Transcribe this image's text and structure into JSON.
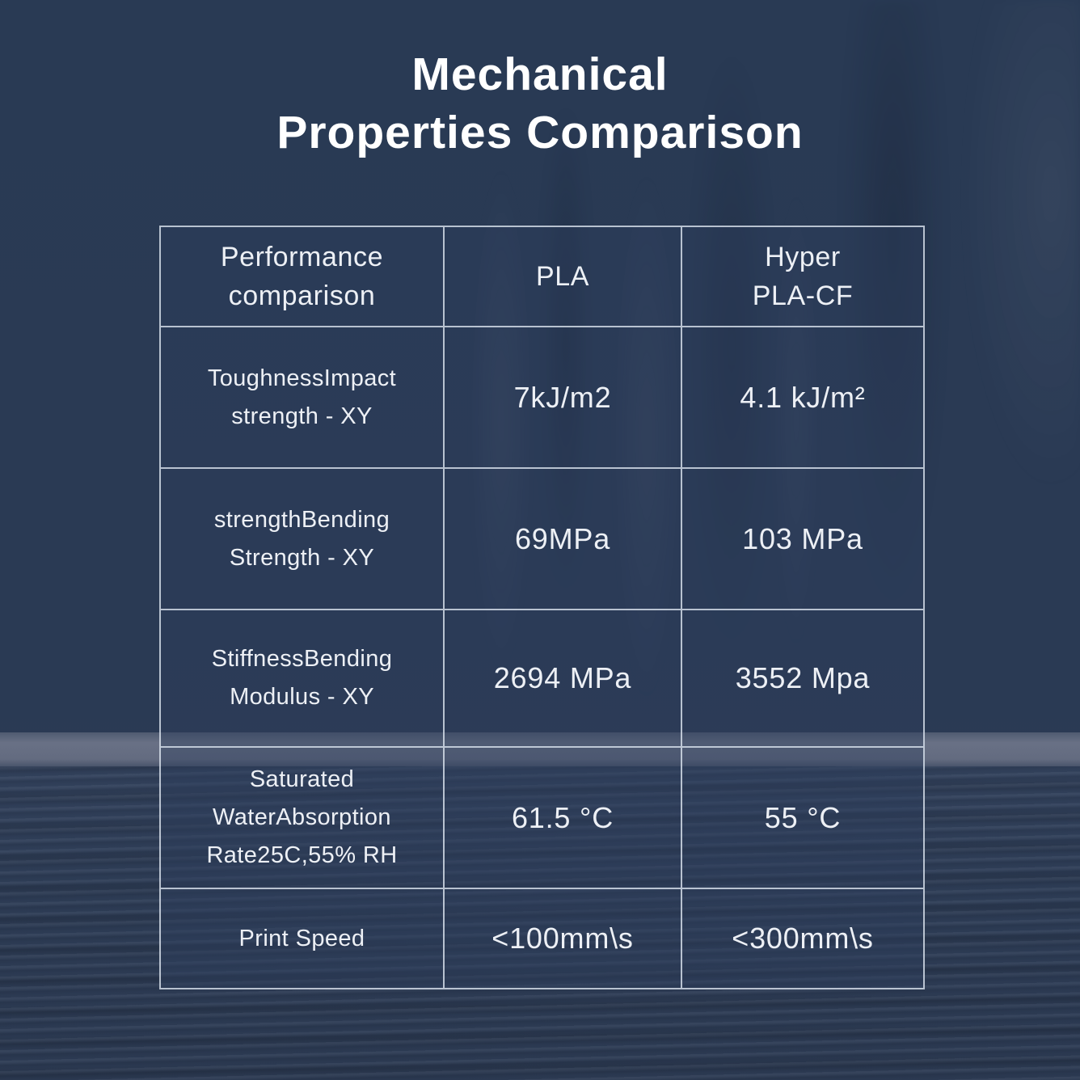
{
  "title": {
    "text": "Mechanical\nProperties Comparison"
  },
  "table": {
    "headers": [
      "Performance\ncomparison",
      "PLA",
      "Hyper\nPLA-CF"
    ],
    "rows": [
      {
        "label": "ToughnessImpact\nstrength - XY",
        "pla": "7kJ/m2",
        "hyper_pla_cf": "4.1 kJ/m²"
      },
      {
        "label": "strengthBending\nStrength - XY",
        "pla": "69MPa",
        "hyper_pla_cf": "103 MPa"
      },
      {
        "label": "StiffnessBending\nModulus - XY",
        "pla": "2694 MPa",
        "hyper_pla_cf": "3552 Mpa"
      },
      {
        "label": "Saturated\nWaterAbsorption\nRate25C,55% RH",
        "pla": "61.5 °C",
        "hyper_pla_cf": "55 °C"
      },
      {
        "label": "Print Speed",
        "pla": "<100mm\\s",
        "hyper_pla_cf": "<300mm\\s"
      }
    ]
  },
  "chart_data": {
    "type": "table",
    "title": "Mechanical Properties Comparison",
    "columns": [
      "Performance comparison",
      "PLA",
      "Hyper PLA-CF"
    ],
    "rows": [
      [
        "ToughnessImpact strength - XY",
        "7kJ/m2",
        "4.1 kJ/m²"
      ],
      [
        "strengthBending Strength - XY",
        "69MPa",
        "103 MPa"
      ],
      [
        "StiffnessBending Modulus - XY",
        "2694 MPa",
        "3552 Mpa"
      ],
      [
        "Saturated WaterAbsorption Rate25C,55% RH",
        "61.5 °C",
        "55 °C"
      ],
      [
        "Print Speed",
        "<100mm\\s",
        "<300mm\\s"
      ]
    ]
  },
  "colors": {
    "background": "#2a3a54",
    "gray_band": "#6b7285",
    "table_border": "#d8e0ec",
    "text": "#edf0f5",
    "title_text": "#ffffff"
  }
}
